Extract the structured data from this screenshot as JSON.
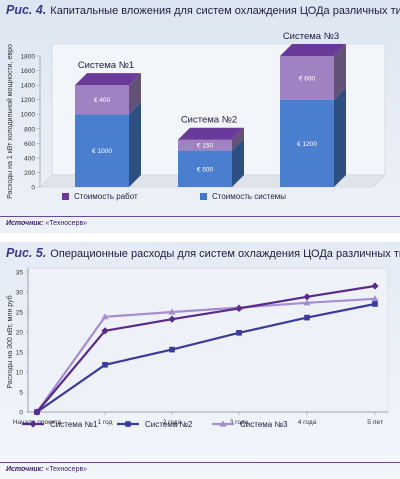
{
  "chart_data": [
    {
      "type": "bar",
      "figure_label": "Рис. 4.",
      "title": "Капитальные вложения для систем охлаждения ЦОДа различных типов",
      "ylabel": "Расходы на 1 кВт холодильной мощности, евро",
      "ylim": [
        0,
        1800
      ],
      "yticks": [
        0,
        200,
        400,
        600,
        800,
        1000,
        1200,
        1400,
        1600,
        1800
      ],
      "categories": [
        "Система №1",
        "Система №2",
        "Система №3"
      ],
      "stacked": true,
      "series": [
        {
          "name": "Стоимость системы",
          "values": [
            1000,
            500,
            1200
          ],
          "labels": [
            "€ 1000",
            "€ 500",
            "€ 1200"
          ],
          "color": "#4a7fd0"
        },
        {
          "name": "Стоимость работ",
          "values": [
            400,
            150,
            600
          ],
          "labels": [
            "€ 400",
            "€ 150",
            "€ 600"
          ],
          "color": "#9f82c2"
        }
      ],
      "legend_order": [
        "Стоимость работ",
        "Стоимость системы"
      ],
      "legend_colors": [
        "#6a3a9a",
        "#3e77c8"
      ],
      "legend_position": "bottom",
      "grid": false,
      "source_label": "Источник:",
      "source_text": "«Техносерв»"
    },
    {
      "type": "line",
      "figure_label": "Рис. 5.",
      "title": "Операционные расходы для систем охлаждения ЦОДа различных типов",
      "ylabel": "Расходы на 300 кВт, млн руб",
      "ylim": [
        0,
        35
      ],
      "yticks": [
        0,
        5,
        10,
        15,
        20,
        25,
        30,
        35
      ],
      "x": [
        "Начало проекта",
        "1 год",
        "2 года",
        "3 года",
        "4 года",
        "5 лет"
      ],
      "series": [
        {
          "name": "Система №1",
          "values": [
            0,
            20.3,
            23.2,
            25.9,
            28.8,
            31.5
          ],
          "color": "#5a2a8a",
          "marker": "diamond"
        },
        {
          "name": "Система №2",
          "values": [
            0,
            11.8,
            15.6,
            19.8,
            23.6,
            27.0
          ],
          "color": "#3a3a9a",
          "marker": "square"
        },
        {
          "name": "Система №3",
          "values": [
            0,
            23.8,
            25.0,
            26.1,
            27.3,
            28.3
          ],
          "color": "#a58ecf",
          "marker": "triangle"
        }
      ],
      "legend_position": "bottom",
      "grid": false,
      "source_label": "Источник:",
      "source_text": "«Техносерв»"
    }
  ]
}
